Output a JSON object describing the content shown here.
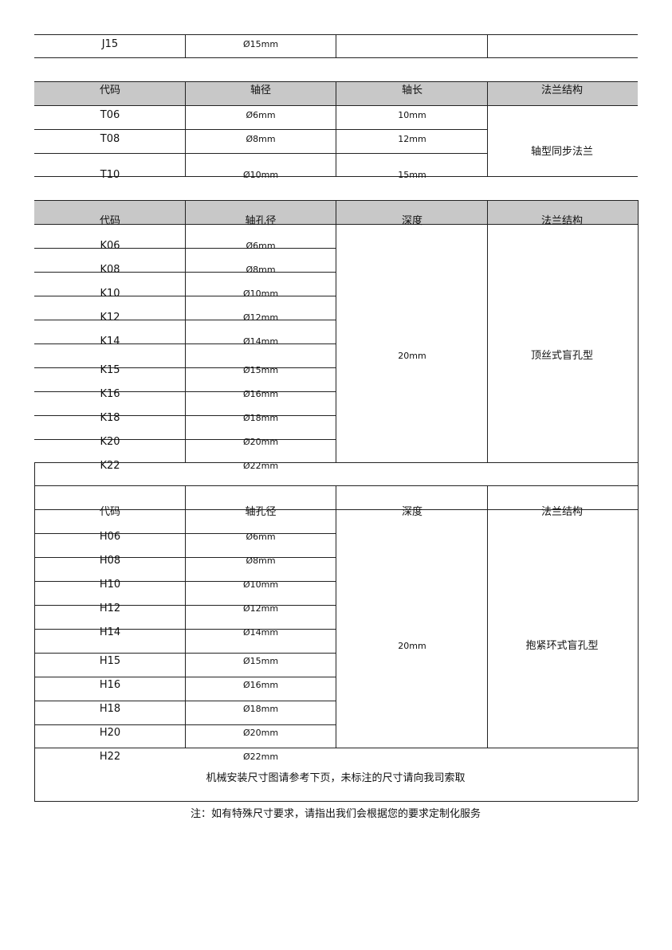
{
  "table_j": {
    "rows": [
      {
        "code": "J15",
        "diameter": "Ø15mm"
      }
    ]
  },
  "table_t": {
    "headers": [
      "代码",
      "轴径",
      "轴长",
      "法兰结构"
    ],
    "rows": [
      {
        "code": "T06",
        "diameter": "Ø6mm",
        "length": "10mm"
      },
      {
        "code": "T08",
        "diameter": "Ø8mm",
        "length": "12mm"
      },
      {
        "code": "T10",
        "diameter": "Ø10mm",
        "length": "15mm"
      }
    ],
    "structure": "轴型同步法兰"
  },
  "table_k": {
    "headers": [
      "代码",
      "轴孔径",
      "深度",
      "法兰结构"
    ],
    "rows": [
      {
        "code": "K06",
        "diameter": "Ø6mm"
      },
      {
        "code": "K08",
        "diameter": "Ø8mm"
      },
      {
        "code": "K10",
        "diameter": "Ø10mm"
      },
      {
        "code": "K12",
        "diameter": "Ø12mm"
      },
      {
        "code": "K14",
        "diameter": "Ø14mm"
      },
      {
        "code": "K15",
        "diameter": "Ø15mm"
      },
      {
        "code": "K16",
        "diameter": "Ø16mm"
      },
      {
        "code": "K18",
        "diameter": "Ø18mm"
      },
      {
        "code": "K20",
        "diameter": "Ø20mm"
      },
      {
        "code": "K22",
        "diameter": "Ø22mm"
      }
    ],
    "depth": "20mm",
    "structure": "顶丝式盲孔型"
  },
  "table_h": {
    "headers": [
      "代码",
      "轴孔径",
      "深度",
      "法兰结构"
    ],
    "rows": [
      {
        "code": "H06",
        "diameter": "Ø6mm"
      },
      {
        "code": "H08",
        "diameter": "Ø8mm"
      },
      {
        "code": "H10",
        "diameter": "Ø10mm"
      },
      {
        "code": "H12",
        "diameter": "Ø12mm"
      },
      {
        "code": "H14",
        "diameter": "Ø14mm"
      },
      {
        "code": "H15",
        "diameter": "Ø15mm"
      },
      {
        "code": "H16",
        "diameter": "Ø16mm"
      },
      {
        "code": "H18",
        "diameter": "Ø18mm"
      },
      {
        "code": "H20",
        "diameter": "Ø20mm"
      },
      {
        "code": "H22",
        "diameter": "Ø22mm"
      }
    ],
    "depth": "20mm",
    "structure": "抱紧环式盲孔型"
  },
  "install_note": "机械安装尺寸图请参考下页，未标注的尺寸请向我司索取",
  "footnote": "注：如有特殊尺寸要求，请指出我们会根据您的要求定制化服务",
  "colors": {
    "header_bg": "#c8c8c8",
    "line": "#222222"
  }
}
